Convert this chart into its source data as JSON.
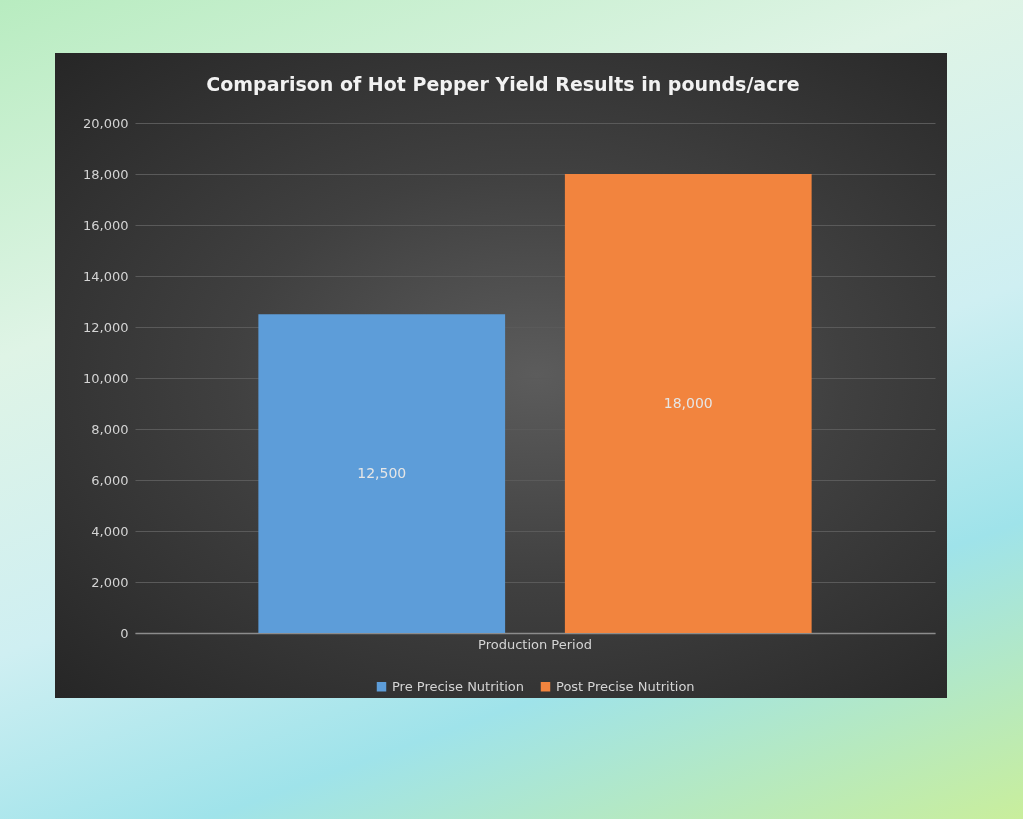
{
  "chart_data": {
    "type": "bar",
    "title": "Comparison of Hot Pepper Yield Results in pounds/acre",
    "categories": [
      "Production Period"
    ],
    "series": [
      {
        "name": "Pre Precise Nutrition",
        "color": "#5d9dd9",
        "values": [
          12500
        ],
        "value_labels": [
          "12,500"
        ]
      },
      {
        "name": "Post Precise Nutrition",
        "color": "#f2843e",
        "values": [
          18000
        ],
        "value_labels": [
          "18,000"
        ]
      }
    ],
    "ylim": [
      0,
      20000
    ],
    "yticks": [
      0,
      {
        "value": 2000,
        "label": "2,000"
      },
      {
        "value": 4000,
        "label": "4,000"
      },
      {
        "value": 6000,
        "label": "6,000"
      },
      {
        "value": 8000,
        "label": "8,000"
      },
      {
        "value": 10000,
        "label": "10,000"
      },
      {
        "value": 12000,
        "label": "12,000"
      },
      {
        "value": 14000,
        "label": "14,000"
      },
      {
        "value": 16000,
        "label": "16,000"
      },
      {
        "value": 18000,
        "label": "18,000"
      },
      {
        "value": 20000,
        "label": "20,000"
      }
    ],
    "grid": "y",
    "legend": "bottom"
  }
}
